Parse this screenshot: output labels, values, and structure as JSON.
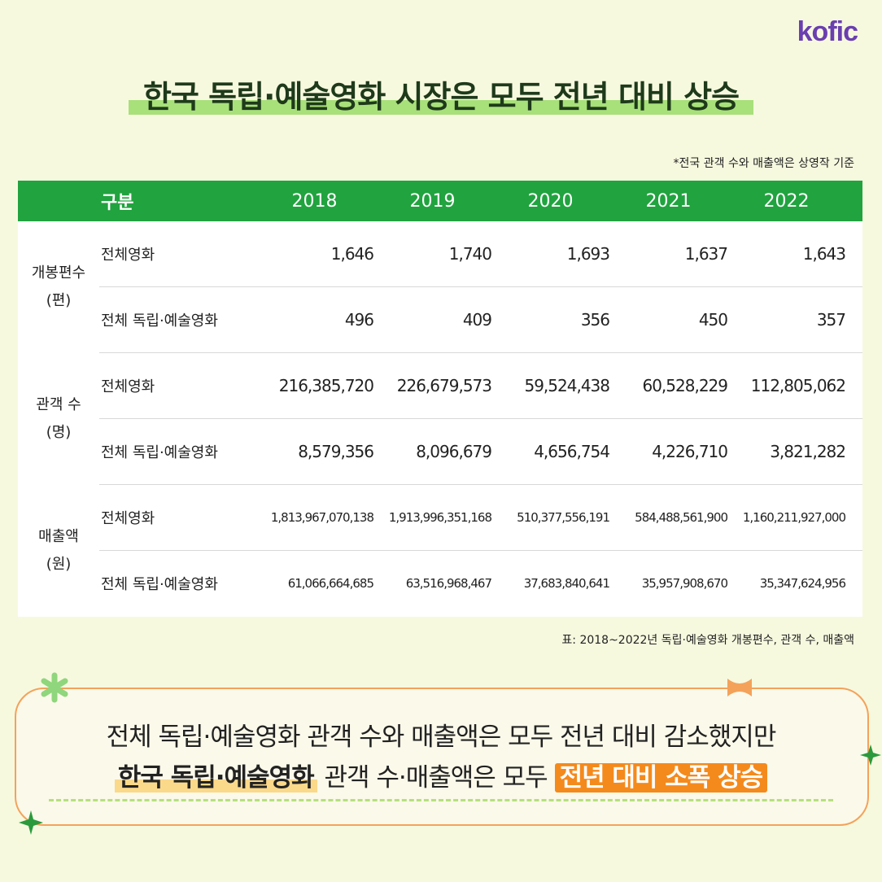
{
  "brand": {
    "logo": "kofic"
  },
  "title": "한국 독립·예술영화 시장은 모두 전년 대비 상승",
  "note": "*전국 관객 수와 매출액은 상영작 기준",
  "table": {
    "header": {
      "category": "구분",
      "years": [
        "2018",
        "2019",
        "2020",
        "2021",
        "2022"
      ]
    },
    "groups": [
      {
        "label_line1": "개봉편수",
        "label_line2": "(편)",
        "rows": [
          {
            "label": "전체영화",
            "values": [
              "1,646",
              "1,740",
              "1,693",
              "1,637",
              "1,643"
            ]
          },
          {
            "label": "전체 독립·예술영화",
            "values": [
              "496",
              "409",
              "356",
              "450",
              "357"
            ]
          }
        ]
      },
      {
        "label_line1": "관객 수",
        "label_line2": "(명)",
        "rows": [
          {
            "label": "전체영화",
            "values": [
              "216,385,720",
              "226,679,573",
              "59,524,438",
              "60,528,229",
              "112,805,062"
            ]
          },
          {
            "label": "전체 독립·예술영화",
            "values": [
              "8,579,356",
              "8,096,679",
              "4,656,754",
              "4,226,710",
              "3,821,282"
            ]
          }
        ]
      },
      {
        "label_line1": "매출액",
        "label_line2": "(원)",
        "rows": [
          {
            "label": "전체영화",
            "values": [
              "1,813,967,070,138",
              "1,913,996,351,168",
              "510,377,556,191",
              "584,488,561,900",
              "1,160,211,927,000"
            ]
          },
          {
            "label": "전체 독립·예술영화",
            "values": [
              "61,066,664,685",
              "63,516,968,467",
              "37,683,840,641",
              "35,957,908,670",
              "35,347,624,956"
            ]
          }
        ]
      }
    ]
  },
  "caption": "표: 2018~2022년 독립·예술영화 개봉편수, 관객 수, 매출액",
  "summary": {
    "line1": "전체 독립·예술영화 관객 수와 매출액은 모두 전년 대비 감소했지만",
    "line2_highlight": "한국 독립·예술영화",
    "line2_middle": " 관객 수·매출액은 모두 ",
    "line2_emphasis": "전년 대비 소폭 상승"
  },
  "colors": {
    "header_green": "#21a33f",
    "accent_orange": "#f48a1c",
    "logo_purple": "#6a3fb0",
    "background": "#f7f9df"
  }
}
